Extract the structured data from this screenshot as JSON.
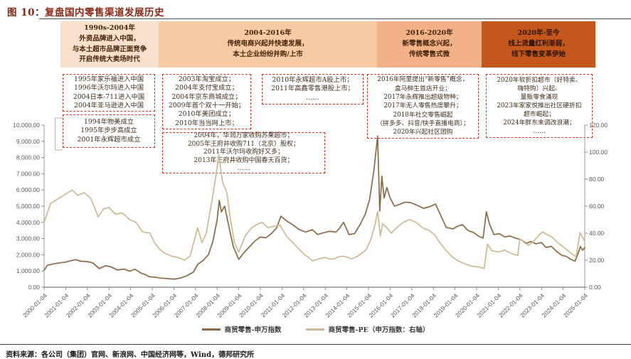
{
  "page": {
    "title": "图 10：复盘国内零售渠道发展历史",
    "source": "资料来源：各公司（集团）官网、新浪网、中国经济网等，Wind，德邦研究所"
  },
  "eras": [
    {
      "lines": [
        "1990s-2004年",
        "外资品牌进入中国，",
        "与本土超市品牌正面竞争",
        "开启传统大卖场时代"
      ]
    },
    {
      "lines": [
        "2004-2016年",
        "传统电商兴起并快速发展，",
        "本土企业纷纷并购/上市"
      ]
    },
    {
      "lines": [
        "2016-2020年",
        "新零售概念兴起，",
        "传统零售式微"
      ]
    },
    {
      "lines": [
        "2020年-至今",
        "线上流量红利渐弱，",
        "线下零售变革伊始"
      ]
    }
  ],
  "annotations": [
    {
      "lines": [
        "1995年家乐福进入中国",
        "1996年沃尔玛进入中国",
        "2004日本-711进入中国",
        "2004年亚马逊进入中国"
      ]
    },
    {
      "lines": [
        "1994年物美成立",
        "1995年步步高成立",
        "2001年永辉超市成立"
      ]
    },
    {
      "lines": [
        "2003年淘宝成立；",
        "2004年支付宝成立；",
        "2004年京东商城成立；",
        "2009年首个双十一开始；",
        "2010年美团成立；",
        "2010年当当网上市；"
      ]
    },
    {
      "lines": [
        "2004年，华润万家收购苏果超市；",
        "2005年王府井收购711（北京）股权；",
        "2011年沃尔玛收购好又多；",
        "2013年王府井收购中国春天百货；",
        "……"
      ]
    },
    {
      "lines": [
        "2010年永辉超市A股上市；",
        "2011年高鑫零售港股上市；",
        "……"
      ]
    },
    {
      "lines": [
        "2016年阿里提出“新零售”概念，",
        "盒马鲜生首店开业；",
        "2017年永辉推出超级物种；",
        "2017年无人零售热度攀升；",
        "2018年社交零售崛起",
        "（拼多多、抖音/快手直播电商）；",
        "2020年兴起社区团购"
      ]
    },
    {
      "lines": [
        "2020年软折扣超市（好特卖、",
        "嗨特购）兴起、",
        "量贩零食涌现",
        "2023年家家悦推出社区硬折扣",
        "超市崛起；",
        "2024年胖东来调改浪潮；",
        "……"
      ]
    }
  ],
  "chart_data": {
    "type": "line",
    "grid": false,
    "legend_position": "bottom",
    "x": {
      "tick_labels": [
        "2000-01-04",
        "2001-01-04",
        "2002-01-04",
        "2003-01-04",
        "2004-01-04",
        "2005-01-04",
        "2006-01-04",
        "2007-01-04",
        "2008-01-04",
        "2009-01-04",
        "2010-01-04",
        "2011-01-04",
        "2012-01-04",
        "2013-01-04",
        "2014-01-04",
        "2015-01-04",
        "2016-01-04",
        "2017-01-04",
        "2018-01-04",
        "2019-01-04",
        "2020-01-04",
        "2021-01-04",
        "2022-01-04",
        "2023-01-04",
        "2024-01-04",
        "2025-01-04"
      ],
      "range": [
        2000,
        2025
      ]
    },
    "y_left": {
      "min": 0,
      "max": 10000,
      "step": 1000,
      "tick_labels": [
        "10,000.00",
        "9,000.00",
        "8,000.00",
        "7,000.00",
        "6,000.00",
        "5,000.00",
        "4,000.00",
        "3,000.00",
        "2,000.00",
        "1,000.00",
        "0.00"
      ]
    },
    "y_right": {
      "min": 0,
      "max": 120,
      "step": 20,
      "tick_labels": [
        "120.00",
        "100.00",
        "80.00",
        "60.00",
        "40.00",
        "20.00",
        "0.00"
      ]
    },
    "series": [
      {
        "name": "商贸零售-申万指数",
        "axis": "left",
        "color": "#8a6a45",
        "points": [
          [
            2000.0,
            1050
          ],
          [
            2000.15,
            1350
          ],
          [
            2000.4,
            1430
          ],
          [
            2000.7,
            1500
          ],
          [
            2001.0,
            1550
          ],
          [
            2001.2,
            1620
          ],
          [
            2001.45,
            1700
          ],
          [
            2001.7,
            1600
          ],
          [
            2002.0,
            1580
          ],
          [
            2002.25,
            1500
          ],
          [
            2002.55,
            1150
          ],
          [
            2002.85,
            1330
          ],
          [
            2003.1,
            1250
          ],
          [
            2003.4,
            1060
          ],
          [
            2003.7,
            1120
          ],
          [
            2003.95,
            990
          ],
          [
            2004.2,
            1110
          ],
          [
            2004.5,
            860
          ],
          [
            2004.85,
            650
          ],
          [
            2005.1,
            620
          ],
          [
            2005.4,
            560
          ],
          [
            2005.7,
            530
          ],
          [
            2006.0,
            500
          ],
          [
            2006.3,
            560
          ],
          [
            2006.6,
            700
          ],
          [
            2006.9,
            930
          ],
          [
            2007.1,
            1400
          ],
          [
            2007.35,
            1650
          ],
          [
            2007.6,
            2000
          ],
          [
            2007.8,
            2800
          ],
          [
            2008.0,
            4150
          ],
          [
            2008.1,
            5360
          ],
          [
            2008.2,
            4650
          ],
          [
            2008.35,
            5000
          ],
          [
            2008.55,
            3700
          ],
          [
            2008.75,
            2500
          ],
          [
            2009.0,
            1720
          ],
          [
            2009.25,
            2150
          ],
          [
            2009.5,
            2500
          ],
          [
            2009.75,
            2850
          ],
          [
            2010.0,
            3100
          ],
          [
            2010.25,
            3050
          ],
          [
            2010.5,
            3300
          ],
          [
            2010.75,
            3650
          ],
          [
            2010.95,
            4380
          ],
          [
            2011.2,
            4100
          ],
          [
            2011.5,
            3850
          ],
          [
            2011.8,
            3550
          ],
          [
            2012.1,
            3400
          ],
          [
            2012.4,
            3550
          ],
          [
            2012.65,
            3250
          ],
          [
            2012.9,
            3350
          ],
          [
            2013.2,
            3450
          ],
          [
            2013.5,
            3400
          ],
          [
            2013.85,
            4000
          ],
          [
            2014.1,
            3250
          ],
          [
            2014.35,
            3300
          ],
          [
            2014.6,
            3830
          ],
          [
            2014.85,
            4500
          ],
          [
            2015.05,
            5400
          ],
          [
            2015.25,
            7200
          ],
          [
            2015.42,
            9330
          ],
          [
            2015.52,
            4700
          ],
          [
            2015.62,
            6850
          ],
          [
            2015.72,
            5500
          ],
          [
            2015.85,
            6150
          ],
          [
            2016.0,
            5500
          ],
          [
            2016.2,
            5000
          ],
          [
            2016.45,
            5120
          ],
          [
            2016.7,
            5250
          ],
          [
            2016.95,
            5220
          ],
          [
            2017.25,
            5050
          ],
          [
            2017.55,
            4870
          ],
          [
            2017.85,
            4980
          ],
          [
            2018.1,
            5130
          ],
          [
            2018.35,
            4400
          ],
          [
            2018.6,
            3680
          ],
          [
            2018.9,
            3600
          ],
          [
            2019.15,
            3780
          ],
          [
            2019.35,
            3860
          ],
          [
            2019.6,
            3500
          ],
          [
            2019.85,
            3380
          ],
          [
            2020.1,
            3140
          ],
          [
            2020.3,
            3030
          ],
          [
            2020.45,
            4660
          ],
          [
            2020.6,
            3880
          ],
          [
            2020.8,
            3250
          ],
          [
            2021.05,
            3300
          ],
          [
            2021.3,
            3100
          ],
          [
            2021.55,
            3160
          ],
          [
            2021.8,
            3030
          ],
          [
            2022.05,
            2930
          ],
          [
            2022.3,
            2700
          ],
          [
            2022.5,
            2820
          ],
          [
            2022.75,
            2670
          ],
          [
            2023.0,
            2760
          ],
          [
            2023.2,
            2450
          ],
          [
            2023.45,
            2520
          ],
          [
            2023.7,
            2200
          ],
          [
            2023.95,
            1960
          ],
          [
            2024.15,
            1900
          ],
          [
            2024.35,
            1730
          ],
          [
            2024.55,
            1600
          ],
          [
            2024.7,
            2120
          ],
          [
            2024.8,
            2510
          ],
          [
            2024.9,
            2280
          ],
          [
            2025.0,
            2450
          ]
        ]
      },
      {
        "name": "商贸零售-PE（申万指数：右轴）",
        "axis": "right",
        "color": "#cdb994",
        "points": [
          [
            2000.0,
            48
          ],
          [
            2000.3,
            62
          ],
          [
            2000.6,
            65
          ],
          [
            2000.9,
            68
          ],
          [
            2001.1,
            70
          ],
          [
            2001.3,
            72
          ],
          [
            2001.55,
            68
          ],
          [
            2001.85,
            70
          ],
          [
            2002.15,
            66
          ],
          [
            2002.5,
            52
          ],
          [
            2002.75,
            58
          ],
          [
            2003.0,
            59
          ],
          [
            2003.3,
            54
          ],
          [
            2003.6,
            55
          ],
          [
            2003.95,
            50
          ],
          [
            2004.25,
            48
          ],
          [
            2004.55,
            41
          ],
          [
            2004.9,
            40
          ],
          [
            2005.1,
            33
          ],
          [
            2005.35,
            28
          ],
          [
            2005.6,
            25
          ],
          [
            2005.9,
            23
          ],
          [
            2006.2,
            22
          ],
          [
            2006.5,
            20
          ],
          [
            2006.75,
            23
          ],
          [
            2006.95,
            35
          ],
          [
            2007.1,
            44
          ],
          [
            2007.3,
            33
          ],
          [
            2007.5,
            40
          ],
          [
            2007.75,
            63
          ],
          [
            2007.95,
            83
          ],
          [
            2008.08,
            98
          ],
          [
            2008.25,
            78
          ],
          [
            2008.45,
            70
          ],
          [
            2008.6,
            52
          ],
          [
            2008.8,
            33
          ],
          [
            2009.0,
            26
          ],
          [
            2009.3,
            38
          ],
          [
            2009.6,
            44
          ],
          [
            2009.9,
            47
          ],
          [
            2010.1,
            48
          ],
          [
            2010.35,
            44
          ],
          [
            2010.6,
            45
          ],
          [
            2010.9,
            46
          ],
          [
            2011.2,
            38
          ],
          [
            2011.5,
            33
          ],
          [
            2011.8,
            28
          ],
          [
            2012.05,
            24
          ],
          [
            2012.4,
            19.5
          ],
          [
            2012.7,
            21
          ],
          [
            2013.0,
            22
          ],
          [
            2013.4,
            21
          ],
          [
            2013.85,
            23
          ],
          [
            2014.2,
            21
          ],
          [
            2014.6,
            24
          ],
          [
            2014.9,
            28
          ],
          [
            2015.1,
            35
          ],
          [
            2015.3,
            46
          ],
          [
            2015.42,
            56
          ],
          [
            2015.55,
            38
          ],
          [
            2015.65,
            47
          ],
          [
            2015.85,
            44
          ],
          [
            2016.05,
            40
          ],
          [
            2016.3,
            44
          ],
          [
            2016.6,
            48
          ],
          [
            2016.9,
            50
          ],
          [
            2017.2,
            48
          ],
          [
            2017.5,
            44
          ],
          [
            2017.8,
            42
          ],
          [
            2018.05,
            39
          ],
          [
            2018.3,
            33
          ],
          [
            2018.6,
            27
          ],
          [
            2018.9,
            22
          ],
          [
            2019.2,
            19
          ],
          [
            2019.5,
            17
          ],
          [
            2019.8,
            15.5
          ],
          [
            2020.1,
            15
          ],
          [
            2020.35,
            14
          ],
          [
            2020.5,
            32
          ],
          [
            2020.7,
            27
          ],
          [
            2021.0,
            26
          ],
          [
            2021.3,
            27.5
          ],
          [
            2021.6,
            25
          ],
          [
            2021.9,
            23.5
          ],
          [
            2022.0,
            36
          ],
          [
            2022.2,
            33
          ],
          [
            2022.4,
            31
          ],
          [
            2022.6,
            33.5
          ],
          [
            2022.85,
            38
          ],
          [
            2023.05,
            41
          ],
          [
            2023.25,
            39
          ],
          [
            2023.5,
            37
          ],
          [
            2023.75,
            33
          ],
          [
            2024.0,
            30
          ],
          [
            2024.3,
            26
          ],
          [
            2024.6,
            22.5
          ],
          [
            2024.78,
            40.5
          ],
          [
            2025.0,
            34
          ]
        ]
      }
    ]
  }
}
